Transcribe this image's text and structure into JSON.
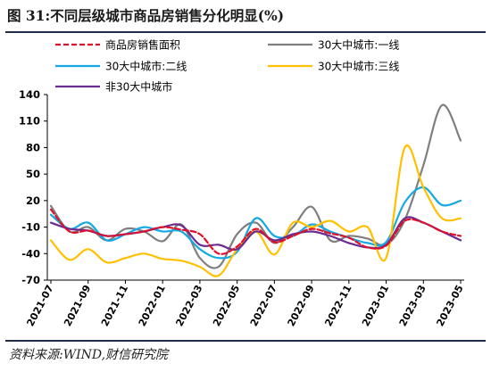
{
  "figure": {
    "title": "图 31:不同层级城市商品房销售分化明显(%)",
    "source": "资料来源:WIND,财信研究院"
  },
  "chart_data": {
    "type": "line",
    "title": "",
    "xlabel": "",
    "ylabel": "",
    "ylim": [
      -70,
      140
    ],
    "yticks": [
      -70,
      -40,
      -10,
      20,
      50,
      80,
      110,
      140
    ],
    "grid": false,
    "legend_position": "top",
    "x": [
      "2021-07",
      "2021-08",
      "2021-09",
      "2021-10",
      "2021-11",
      "2021-12",
      "2022-01",
      "2022-02",
      "2022-03",
      "2022-04",
      "2022-05",
      "2022-06",
      "2022-07",
      "2022-08",
      "2022-09",
      "2022-10",
      "2022-11",
      "2022-12",
      "2023-01",
      "2023-02",
      "2023-03",
      "2023-04",
      "2023-05"
    ],
    "x_tick_labels": [
      "2021-07",
      "2021-09",
      "2021-11",
      "2022-01",
      "2022-03",
      "2022-05",
      "2022-07",
      "2022-09",
      "2022-11",
      "2023-01",
      "2023-03",
      "2023-05"
    ],
    "series": [
      {
        "name": "商品房销售面积",
        "color": "#e0102a",
        "dash": true,
        "values": [
          10,
          -15,
          -14,
          -20,
          -18,
          -15,
          -10,
          -13,
          -18,
          -40,
          -32,
          -12,
          -27,
          -20,
          -12,
          -17,
          -22,
          -33,
          -31,
          -3,
          -5,
          -15,
          -20
        ]
      },
      {
        "name": "30大中城市:一线",
        "color": "#7f7f7f",
        "dash": false,
        "values": [
          14,
          -15,
          -10,
          -25,
          -12,
          -15,
          -26,
          -7,
          -45,
          -55,
          -18,
          -5,
          -28,
          -10,
          13,
          -25,
          -20,
          -23,
          -30,
          -2,
          60,
          128,
          88
        ]
      },
      {
        "name": "30大中城市:二线",
        "color": "#14a9e2",
        "dash": false,
        "values": [
          4,
          -12,
          -5,
          -25,
          -18,
          -10,
          -15,
          -15,
          -35,
          -45,
          -38,
          0,
          -20,
          -20,
          -7,
          -15,
          -22,
          -28,
          -27,
          18,
          35,
          15,
          20
        ]
      },
      {
        "name": "30大中城市:三线",
        "color": "#ffc000",
        "dash": false,
        "values": [
          -25,
          -47,
          -35,
          -50,
          -45,
          -40,
          -46,
          -48,
          -55,
          -65,
          -35,
          -15,
          -41,
          -5,
          -10,
          -3,
          -15,
          -10,
          -45,
          80,
          35,
          0,
          0
        ]
      },
      {
        "name": "非30大中城市",
        "color": "#6a2c91",
        "dash": false,
        "values": [
          -5,
          -12,
          -14,
          -20,
          -18,
          -15,
          -10,
          -8,
          -30,
          -30,
          -35,
          -15,
          -25,
          -18,
          -15,
          -20,
          -28,
          -33,
          -30,
          0,
          -5,
          -15,
          -25
        ]
      }
    ]
  }
}
